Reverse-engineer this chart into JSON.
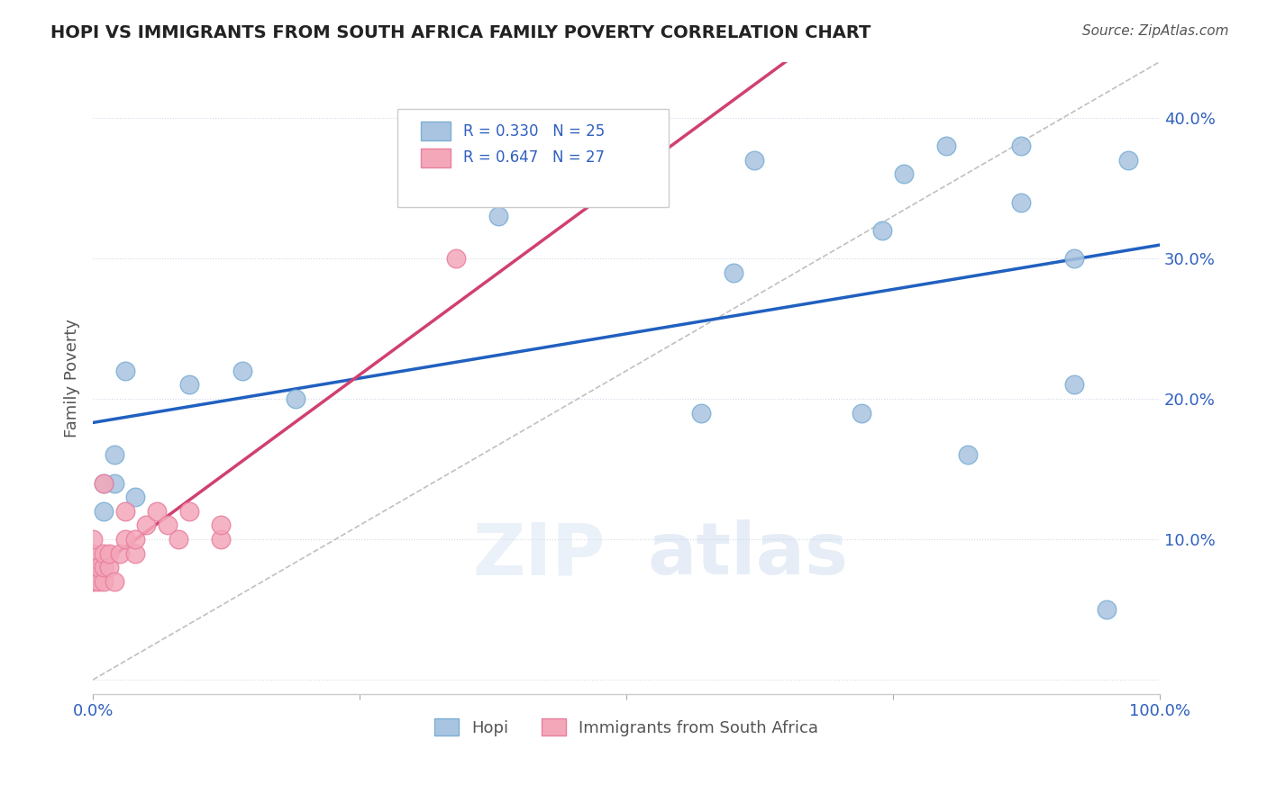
{
  "title": "HOPI VS IMMIGRANTS FROM SOUTH AFRICA FAMILY POVERTY CORRELATION CHART",
  "source": "Source: ZipAtlas.com",
  "xlabel": "",
  "ylabel": "Family Poverty",
  "xlim": [
    0,
    1.0
  ],
  "ylim": [
    -0.01,
    0.44
  ],
  "ytick_positions": [
    0.0,
    0.1,
    0.2,
    0.3,
    0.4
  ],
  "hopi_color": "#a8c4e0",
  "imm_color": "#f4a7b9",
  "hopi_edge": "#7bafd4",
  "imm_edge": "#e87fa0",
  "trend_blue": "#2060c0",
  "trend_pink": "#d04070",
  "diag_color": "#c0c0c0",
  "R_hopi": 0.33,
  "N_hopi": 25,
  "R_imm": 0.647,
  "N_imm": 27,
  "legend_color": "#3060c0",
  "watermark_zip": "ZIP",
  "watermark_atlas": "atlas",
  "hopi_x": [
    0.02,
    0.04,
    0.02,
    0.01,
    0.01,
    0.03,
    0.09,
    0.14,
    0.19,
    0.38,
    0.38,
    0.57,
    0.6,
    0.62,
    0.72,
    0.74,
    0.76,
    0.8,
    0.82,
    0.87,
    0.87,
    0.92,
    0.92,
    0.95,
    0.97
  ],
  "hopi_y": [
    0.16,
    0.13,
    0.14,
    0.12,
    0.14,
    0.22,
    0.21,
    0.22,
    0.2,
    0.37,
    0.33,
    0.19,
    0.29,
    0.37,
    0.19,
    0.32,
    0.36,
    0.38,
    0.16,
    0.34,
    0.38,
    0.21,
    0.3,
    0.05,
    0.37
  ],
  "imm_x": [
    0.0,
    0.0,
    0.0,
    0.0,
    0.0,
    0.005,
    0.005,
    0.01,
    0.01,
    0.01,
    0.01,
    0.015,
    0.015,
    0.02,
    0.025,
    0.03,
    0.03,
    0.04,
    0.04,
    0.05,
    0.06,
    0.07,
    0.08,
    0.09,
    0.12,
    0.12,
    0.34
  ],
  "imm_y": [
    0.07,
    0.08,
    0.08,
    0.09,
    0.1,
    0.07,
    0.08,
    0.07,
    0.08,
    0.09,
    0.14,
    0.08,
    0.09,
    0.07,
    0.09,
    0.1,
    0.12,
    0.09,
    0.1,
    0.11,
    0.12,
    0.11,
    0.1,
    0.12,
    0.1,
    0.11,
    0.3
  ],
  "background_color": "#ffffff",
  "grid_color": "#d0d8e8"
}
